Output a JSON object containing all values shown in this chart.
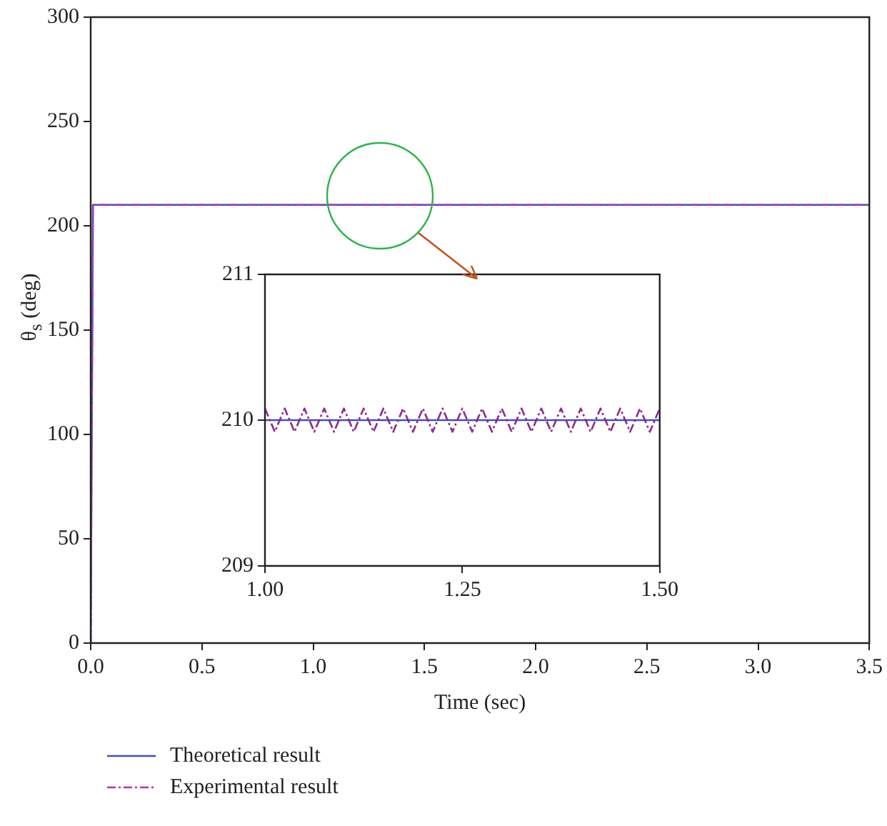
{
  "chart_data": [
    {
      "type": "line",
      "xlabel": "Time (sec)",
      "ylabel": "θ$_{s}$ (deg)",
      "legend": "bottom",
      "x": [
        0,
        0.01,
        3.5
      ],
      "series": [
        {
          "name": "Theoretical result",
          "color": "#3f51b5",
          "values": [
            0,
            210,
            210
          ],
          "line_style": "solid"
        },
        {
          "name": "Experimental result",
          "color": "#b0399f",
          "values": [
            0,
            210,
            210
          ],
          "line_style": "dashed"
        }
      ],
      "xlim": [
        0,
        3.5
      ],
      "ylim": [
        0,
        300
      ],
      "xticks": [
        {
          "value": 0,
          "label": "0.0"
        },
        {
          "value": 0.5,
          "label": "0.5"
        },
        {
          "value": 1,
          "label": "1.0"
        },
        {
          "value": 1.5,
          "label": "1.5"
        },
        {
          "value": 2,
          "label": "2.0"
        },
        {
          "value": 2.5,
          "label": "2.5"
        },
        {
          "value": 3,
          "label": "3.0"
        },
        {
          "value": 3.5,
          "label": "3.5"
        }
      ],
      "yticks": [
        0,
        50,
        100,
        150,
        200,
        250,
        300
      ]
    },
    {
      "type": "line",
      "x": [
        1,
        1.0125,
        1.025,
        1.0375,
        1.05,
        1.0625,
        1.075,
        1.0875,
        1.1,
        1.1125,
        1.125,
        1.1375,
        1.15,
        1.1625,
        1.175,
        1.1875,
        1.2,
        1.2125,
        1.225,
        1.2375,
        1.25,
        1.2625,
        1.275,
        1.2875,
        1.3,
        1.3125,
        1.325,
        1.3375,
        1.35,
        1.3625,
        1.375,
        1.3875,
        1.4,
        1.4125,
        1.425,
        1.4375,
        1.45,
        1.4625,
        1.475,
        1.4875,
        1.5
      ],
      "series": [
        {
          "color": "#3f51b5",
          "x": [
            1,
            1.5
          ],
          "values": [
            210,
            210
          ],
          "line_style": "solid"
        },
        {
          "color": "#8e2a8e",
          "values": [
            210.08,
            209.92,
            210.08,
            209.92,
            210.08,
            209.92,
            210.08,
            209.92,
            210.08,
            209.92,
            210.08,
            209.92,
            210.08,
            209.92,
            210.08,
            209.92,
            210.08,
            209.92,
            210.08,
            209.92,
            210.08,
            209.92,
            210.08,
            209.92,
            210.08,
            209.92,
            210.08,
            209.92,
            210.08,
            209.92,
            210.08,
            209.92,
            210.08,
            209.92,
            210.08,
            209.92,
            210.08,
            209.92,
            210.08,
            209.92,
            210.08
          ],
          "line_style": "dashed"
        }
      ],
      "xlim": [
        1,
        1.5
      ],
      "ylim": [
        209,
        211
      ],
      "xticks": [
        {
          "value": 1,
          "label": "1.00"
        },
        {
          "value": 1.25,
          "label": "1.25"
        },
        {
          "value": 1.5,
          "label": "1.50"
        }
      ],
      "yticks": [
        209,
        210,
        211
      ]
    }
  ]
}
